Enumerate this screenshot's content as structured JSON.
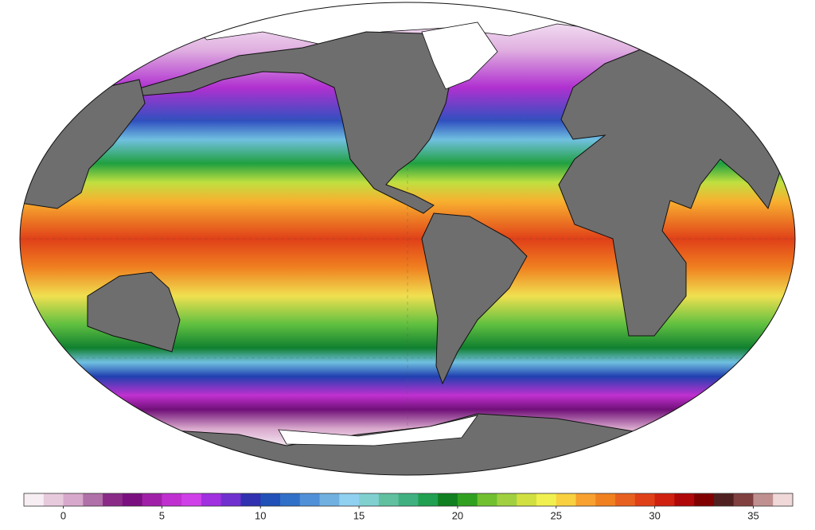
{
  "colorbar": {
    "lim": [
      -2,
      37
    ],
    "ticks": [
      0,
      5,
      10,
      15,
      20,
      25,
      30,
      35
    ],
    "colors": [
      "#f7eef4",
      "#e8cadd",
      "#d8a8cc",
      "#b070a8",
      "#8a2b88",
      "#7a1080",
      "#a020a8",
      "#c030d0",
      "#d040e8",
      "#a030e0",
      "#7030d0",
      "#3030b0",
      "#2050b8",
      "#3070c8",
      "#5090d8",
      "#70b0e0",
      "#90d0f0",
      "#80d0d0",
      "#60c0a0",
      "#40b080",
      "#20a050",
      "#108020",
      "#30a020",
      "#70c030",
      "#a0d040",
      "#d0e040",
      "#f0f050",
      "#f8d040",
      "#f8a030",
      "#f08020",
      "#e86020",
      "#e04018",
      "#d02010",
      "#b00808",
      "#800000",
      "#502020",
      "#804040",
      "#c09090",
      "#f0d8d8"
    ]
  }
}
